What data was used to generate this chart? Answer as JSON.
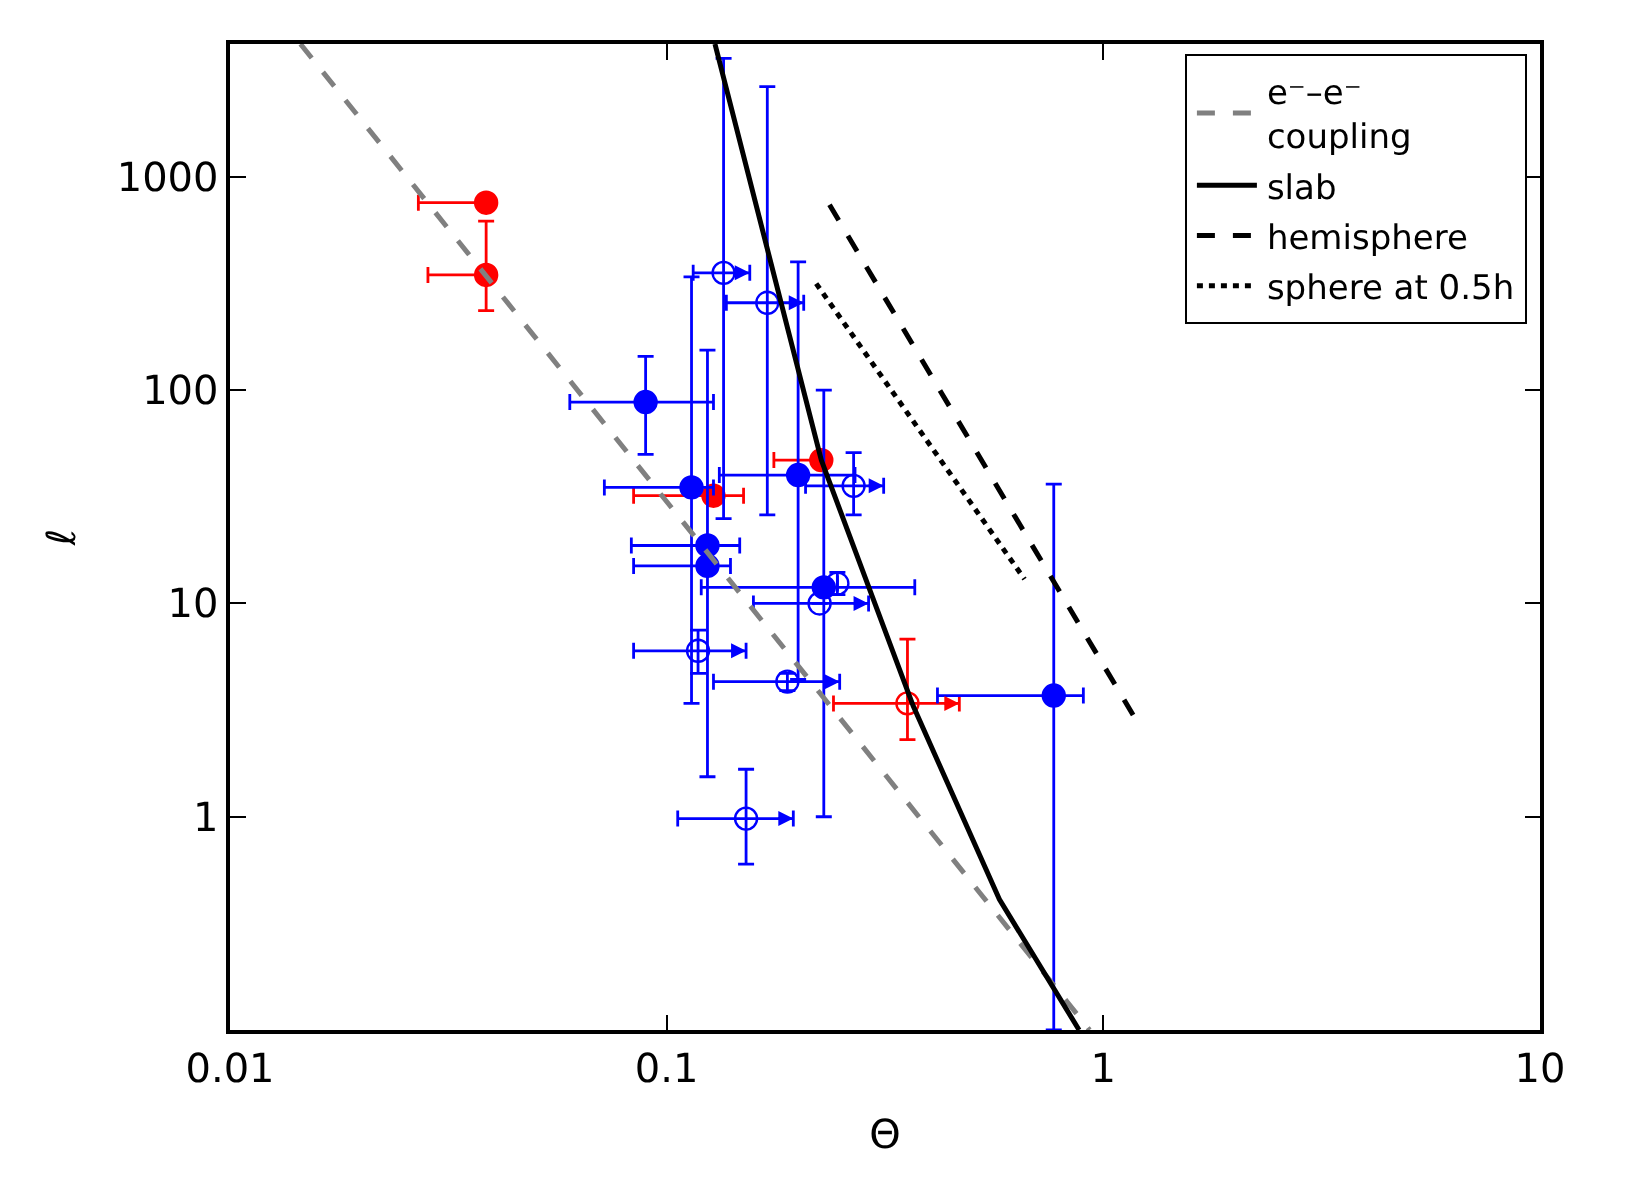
{
  "chart_data": {
    "type": "scatter",
    "xlabel": "Θ",
    "ylabel": "ℓ",
    "log": "xy",
    "xlim": [
      0.01,
      10
    ],
    "xticks": [
      0.01,
      0.1,
      1,
      10
    ],
    "ylim": [
      0.1,
      4200
    ],
    "yticks": [
      1,
      10,
      100,
      1000
    ],
    "legend": "top right",
    "series": [
      {
        "color": "#ff0000",
        "x": [
          0.0386,
          0.0386,
          0.128,
          0.226
        ],
        "values": [
          757,
          347,
          32,
          47
        ],
        "xerrors": [
          [
            0.027,
            0.0386
          ],
          [
            0.0284,
            0.0386
          ],
          [
            0.084,
            0.15
          ],
          [
            0.176,
            0.226
          ]
        ],
        "errors": [
          null,
          [
            236,
            620
          ],
          null,
          null
        ]
      },
      {
        "marker": "circle-open",
        "color": "#ff0000",
        "x": [
          0.356
        ],
        "values": [
          3.4
        ],
        "xerrors": [
          [
            0.241,
            0.468
          ]
        ],
        "errors": [
          [
            2.3,
            6.8
          ]
        ]
      },
      {
        "color": "#0000ff",
        "x": [
          0.0895,
          0.114,
          0.124,
          0.124,
          0.2,
          0.229,
          0.77
        ],
        "values": [
          88,
          35,
          18.7,
          15,
          40,
          11.9,
          3.7
        ],
        "xerrors": [
          [
            0.06,
            0.128
          ],
          [
            0.072,
            0.128
          ],
          [
            0.083,
            0.147
          ],
          [
            0.084,
            0.14
          ],
          [
            0.132,
            0.27
          ],
          [
            0.12,
            0.37
          ],
          [
            0.417,
            0.9
          ]
        ],
        "errors": [
          [
            50,
            144
          ],
          [
            3.4,
            340
          ],
          [
            1.54,
            154
          ],
          null,
          [
            4.4,
            400
          ],
          [
            1,
            100
          ],
          [
            0.1,
            36.3
          ]
        ]
      },
      {
        "marker": "circle-open",
        "color": "#0000ff",
        "x": [
          0.135,
          0.17,
          0.268,
          0.246,
          0.224,
          0.118,
          0.189,
          0.152
        ],
        "values": [
          355,
          257,
          35.6,
          12.4,
          10,
          6,
          4.3,
          0.98
        ],
        "xerrors": [
          [
            0.115,
            0.155
          ],
          [
            0.137,
            0.206
          ],
          [
            0.208,
            0.314
          ],
          null,
          [
            0.158,
            0.29
          ],
          [
            0.084,
            0.152
          ],
          [
            0.128,
            0.249
          ],
          [
            0.106,
            0.195
          ]
        ],
        "errors": [
          [
            25,
            3600
          ],
          [
            26,
            2650
          ],
          [
            26,
            51
          ],
          [
            11,
            14
          ],
          null,
          [
            4.7,
            7.5
          ],
          [
            3.9,
            4.7
          ],
          [
            0.6,
            1.67
          ]
        ]
      },
      {
        "type": "line",
        "name": "e⁻–e⁻\ncoupling",
        "color": "#808080",
        "line_style": "dashed",
        "x": [
          0.0145,
          0.93
        ],
        "values": [
          4200,
          0.1
        ]
      },
      {
        "type": "line",
        "name": "slab",
        "color": "#000000",
        "line_style": "solid",
        "x": [
          0.129,
          0.226,
          0.367,
          0.578,
          0.88
        ],
        "values": [
          4200,
          47,
          3.3,
          0.41,
          0.1
        ]
      },
      {
        "type": "line",
        "name": "hemisphere",
        "color": "#000000",
        "line_style": "dashed",
        "x": [
          0.236,
          1.17
        ],
        "values": [
          740,
          3.0
        ]
      },
      {
        "type": "line",
        "name": "sphere at 0.5h",
        "color": "#000000",
        "line_style": "dotted",
        "x": [
          0.22,
          0.66
        ],
        "values": [
          316,
          13
        ]
      }
    ]
  }
}
